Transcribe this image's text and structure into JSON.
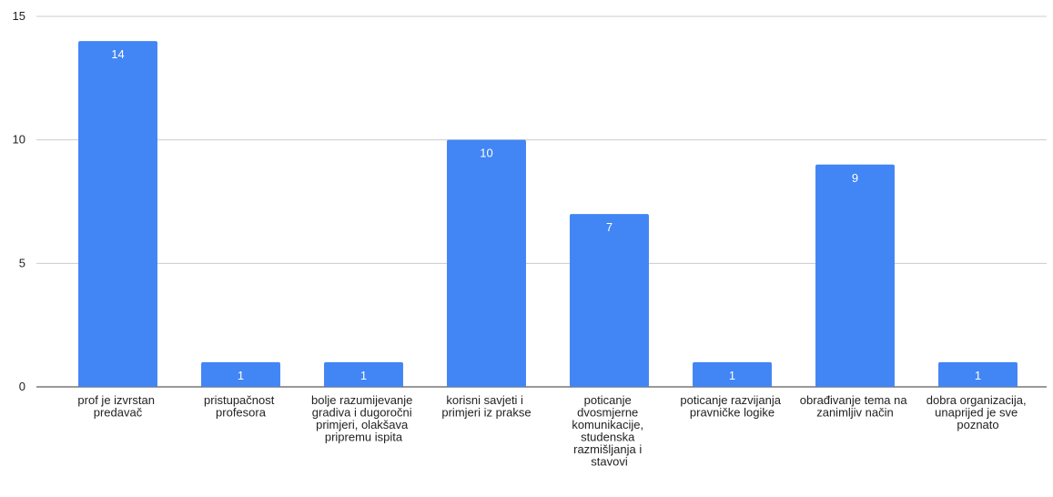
{
  "chart_data": {
    "type": "bar",
    "categories": [
      "prof je izvrstan predavač",
      "pristupačnost profesora",
      "bolje razumijevanje gradiva i dugoročni primjeri, olakšava pripremu ispita",
      "korisni savjeti i primjeri iz prakse",
      "poticanje dvosmjerne komunikacije, studenska razmišljanja i stavovi",
      "poticanje razvijanja pravničke logike",
      "obrađivanje tema na zanimljiv način",
      "dobra organizacija, unaprijed je sve poznato"
    ],
    "values": [
      14,
      1,
      1,
      10,
      7,
      1,
      9,
      1
    ],
    "color": "#4285f4",
    "ylim": [
      0,
      15
    ],
    "yticks": [
      0,
      5,
      10,
      15
    ],
    "grid": true
  }
}
